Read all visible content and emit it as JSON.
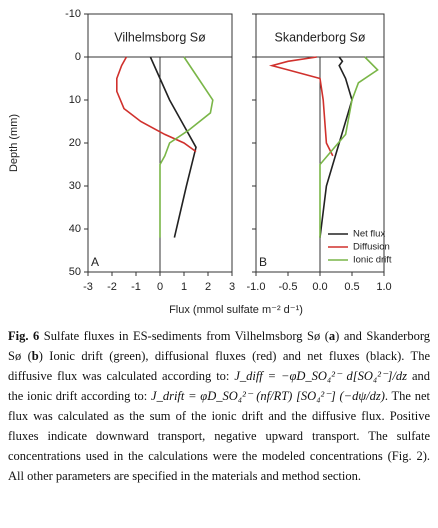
{
  "chart_data": [
    {
      "type": "line",
      "title": "Vilhelmsborg Sø",
      "panel": "A",
      "xlim": [
        -3,
        3
      ],
      "xticks": [
        -3,
        -2,
        -1,
        0,
        1,
        2,
        3
      ],
      "ylim": [
        -10,
        50
      ],
      "yticks": [
        -10,
        0,
        10,
        20,
        30,
        40,
        50
      ],
      "series": [
        {
          "name": "Net flux",
          "color": "#222222",
          "y": [
            0,
            5,
            10,
            15,
            21,
            30,
            42
          ],
          "values": [
            -0.4,
            0,
            0.4,
            0.9,
            1.5,
            1.1,
            0.6
          ]
        },
        {
          "name": "Diffusion",
          "color": "#d0312d",
          "y": [
            0,
            2,
            5,
            8,
            12,
            15,
            18,
            20,
            22
          ],
          "values": [
            -1.4,
            -1.6,
            -1.8,
            -1.8,
            -1.5,
            -0.8,
            0.2,
            1.0,
            1.5
          ]
        },
        {
          "name": "Ionic drift",
          "color": "#7ab648",
          "y": [
            0,
            5,
            10,
            13,
            17,
            20,
            23,
            25,
            42
          ],
          "values": [
            1.0,
            1.6,
            2.2,
            2.1,
            1.2,
            0.4,
            0.2,
            0,
            0
          ]
        }
      ]
    },
    {
      "type": "line",
      "title": "Skanderborg Sø",
      "panel": "B",
      "xlim": [
        -1,
        1
      ],
      "xticks": [
        {
          "value": -1,
          "label": "-1.0"
        },
        -0.5,
        {
          "value": 0,
          "label": "0.0"
        },
        0.5,
        {
          "value": 1,
          "label": "1.0"
        }
      ],
      "ylim": [
        -10,
        50
      ],
      "yticks": [
        -10,
        0,
        10,
        20,
        30,
        40,
        50
      ],
      "legend": "lower right",
      "series": [
        {
          "name": "Net flux",
          "color": "#222222",
          "y": [
            0,
            1,
            2,
            5,
            10,
            20,
            30,
            42
          ],
          "values": [
            0.3,
            0.35,
            0.3,
            0.4,
            0.5,
            0.3,
            0.1,
            0
          ]
        },
        {
          "name": "Diffusion",
          "color": "#d0312d",
          "y": [
            0,
            1,
            2,
            3,
            5,
            10,
            20,
            23
          ],
          "values": [
            -0.05,
            -0.5,
            -0.75,
            -0.5,
            0,
            0.05,
            0.1,
            0.2
          ]
        },
        {
          "name": "Ionic drift",
          "color": "#7ab648",
          "y": [
            0,
            3,
            6,
            10,
            18,
            25,
            42
          ],
          "values": [
            0.7,
            0.9,
            0.6,
            0.5,
            0.4,
            0,
            0
          ]
        }
      ]
    }
  ],
  "axes": {
    "ylabel": "Depth (mm)",
    "xlabel": "Flux (mmol sulfate m⁻² d⁻¹)"
  },
  "caption": {
    "label": "Fig. 6",
    "parts": [
      "Sulfate fluxes in ES-sediments from Vilhelmsborg Sø (",
      "a",
      ") and Skanderborg Sø (",
      "b",
      ") Ionic drift (green), diffusional fluxes (red) and net fluxes (black). The diffusive flux was calculated according to: ",
      "J_diff = −φD_SO₄²⁻ d[SO₄²⁻]/dz",
      " and the ionic drift according to: ",
      "J_drift = φD_SO₄²⁻ (nf/RT) [SO₄²⁻] (−dψ/dz)",
      ". The net flux was calculated as the sum of the ionic drift and the diffusive flux. Positive fluxes indicate downward transport, negative upward transport. The sulfate concentrations used in the calculations were the modeled concentrations (Fig. 2). All other parameters are specified in the materials and method section."
    ]
  }
}
